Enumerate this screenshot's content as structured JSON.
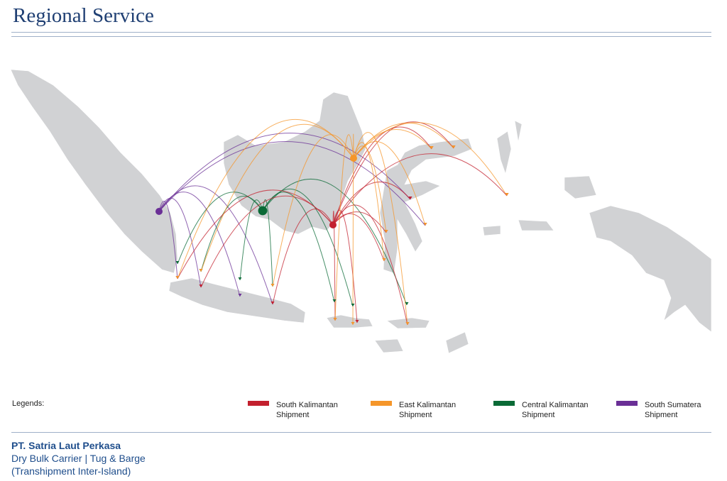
{
  "header": {
    "title": "Regional Service"
  },
  "map": {
    "origins": [
      {
        "name": "South Sumatera",
        "color": "#6a2f96"
      },
      {
        "name": "Central Kalimantan",
        "color": "#0a6a36"
      },
      {
        "name": "South Kalimantan",
        "color": "#c3202e"
      },
      {
        "name": "East Kalimantan",
        "color": "#f5962a"
      }
    ],
    "land_color": "#d1d2d4"
  },
  "legend": {
    "title": "Legends:",
    "items": [
      {
        "label": "South Kalimantan Shipment",
        "color": "#c3202e"
      },
      {
        "label": "East Kalimantan Shipment",
        "color": "#f5962a"
      },
      {
        "label": "Central Kalimantan Shipment",
        "color": "#0a6a36"
      },
      {
        "label": "South Sumatera Shipment",
        "color": "#6a2f96"
      }
    ]
  },
  "footer": {
    "company": "PT. Satria Laut Perkasa",
    "line1": "Dry Bulk Carrier | Tug & Barge",
    "line2": "(Transhipment Inter-Island)"
  }
}
